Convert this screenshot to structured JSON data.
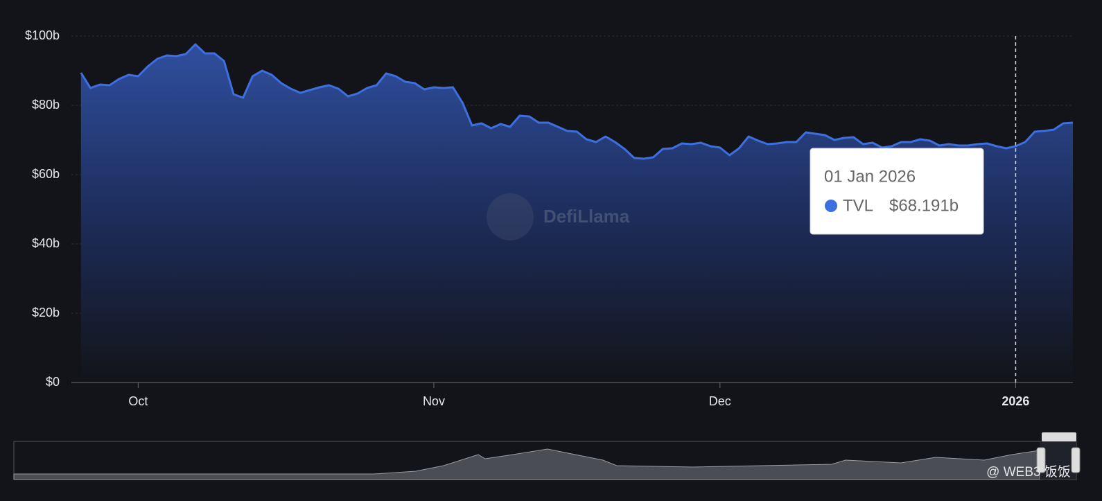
{
  "chart_data": {
    "type": "area",
    "x": [
      "2025-09-25",
      "2025-09-26",
      "2025-09-27",
      "2025-09-28",
      "2025-09-29",
      "2025-09-30",
      "2025-10-01",
      "2025-10-02",
      "2025-10-03",
      "2025-10-04",
      "2025-10-05",
      "2025-10-06",
      "2025-10-07",
      "2025-10-08",
      "2025-10-09",
      "2025-10-10",
      "2025-10-11",
      "2025-10-12",
      "2025-10-13",
      "2025-10-14",
      "2025-10-15",
      "2025-10-16",
      "2025-10-17",
      "2025-10-18",
      "2025-10-19",
      "2025-10-20",
      "2025-10-21",
      "2025-10-22",
      "2025-10-23",
      "2025-10-24",
      "2025-10-25",
      "2025-10-26",
      "2025-10-27",
      "2025-10-28",
      "2025-10-29",
      "2025-10-30",
      "2025-10-31",
      "2025-11-01",
      "2025-11-02",
      "2025-11-03",
      "2025-11-04",
      "2025-11-05",
      "2025-11-06",
      "2025-11-07",
      "2025-11-08",
      "2025-11-09",
      "2025-11-10",
      "2025-11-11",
      "2025-11-12",
      "2025-11-13",
      "2025-11-14",
      "2025-11-15",
      "2025-11-16",
      "2025-11-17",
      "2025-11-18",
      "2025-11-19",
      "2025-11-20",
      "2025-11-21",
      "2025-11-22",
      "2025-11-23",
      "2025-11-24",
      "2025-11-25",
      "2025-11-26",
      "2025-11-27",
      "2025-11-28",
      "2025-11-29",
      "2025-11-30",
      "2025-12-01",
      "2025-12-02",
      "2025-12-03",
      "2025-12-04",
      "2025-12-05",
      "2025-12-06",
      "2025-12-07",
      "2025-12-08",
      "2025-12-09",
      "2025-12-10",
      "2025-12-11",
      "2025-12-12",
      "2025-12-13",
      "2025-12-14",
      "2025-12-15",
      "2025-12-16",
      "2025-12-17",
      "2025-12-18",
      "2025-12-19",
      "2025-12-20",
      "2025-12-21",
      "2025-12-22",
      "2025-12-23",
      "2025-12-24",
      "2025-12-25",
      "2025-12-26",
      "2025-12-27",
      "2025-12-28",
      "2025-12-29",
      "2025-12-30",
      "2025-12-31",
      "2026-01-01",
      "2026-01-02",
      "2026-01-03",
      "2026-01-04",
      "2026-01-05",
      "2026-01-06",
      "2026-01-07"
    ],
    "series": [
      {
        "name": "TVL",
        "color": "#3d6fe0",
        "values": [
          89.4,
          85,
          86,
          85.8,
          87.6,
          88.8,
          88.4,
          91.2,
          93.4,
          94.4,
          94.2,
          94.8,
          97.6,
          95,
          95,
          92.8,
          83.2,
          82.2,
          88.4,
          90,
          88.8,
          86.4,
          84.8,
          83.6,
          84.4,
          85.2,
          85.8,
          84.8,
          82.6,
          83.4,
          85,
          85.8,
          89.2,
          88.4,
          86.8,
          86.4,
          84.6,
          85.2,
          85,
          85.2,
          80.8,
          74.2,
          74.8,
          73.4,
          74.6,
          73.8,
          77,
          76.8,
          75,
          75,
          73.8,
          72.6,
          72.4,
          70.2,
          69.4,
          71,
          69.4,
          67.4,
          64.8,
          64.6,
          65,
          67.4,
          67.6,
          69,
          68.8,
          69.2,
          68.2,
          67.8,
          65.6,
          67.6,
          71,
          69.8,
          68.8,
          69,
          69.4,
          69.4,
          72.2,
          71.8,
          71.4,
          70,
          70.6,
          70.8,
          68.8,
          69.2,
          67.8,
          68.2,
          69.4,
          69.4,
          70.2,
          69.8,
          68.4,
          68.8,
          68.4,
          68.4,
          68.8,
          69,
          68.2,
          67.6,
          68.191,
          69.4,
          72.4,
          72.6,
          73,
          74.8,
          75
        ]
      }
    ],
    "xlim": [
      "2025-09-24",
      "2026-01-07"
    ],
    "xticks": [
      {
        "value": "2025-10-01",
        "label": "Oct"
      },
      {
        "value": "2025-11-01",
        "label": "Nov"
      },
      {
        "value": "2025-12-01",
        "label": "Dec"
      },
      {
        "value": "2026-01-01",
        "label": "2026"
      }
    ],
    "ylim": [
      0,
      100
    ],
    "yticks": [
      {
        "value": 0,
        "label": "$0"
      },
      {
        "value": 20,
        "label": "$20b"
      },
      {
        "value": 40,
        "label": "$40b"
      },
      {
        "value": 60,
        "label": "$60b"
      },
      {
        "value": 80,
        "label": "$80b"
      },
      {
        "value": 100,
        "label": "$100b"
      }
    ],
    "grid": true,
    "tooltip": {
      "x": "2026-01-01",
      "label": "01 Jan 2026",
      "value_label": "$68.191b"
    },
    "watermark": "DefiLlama",
    "credit": "@ WEB3 饭饭"
  }
}
